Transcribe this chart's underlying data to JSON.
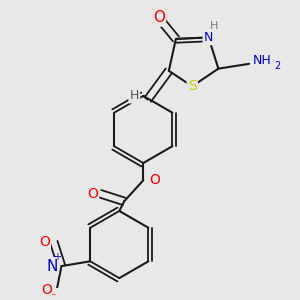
{
  "bg_color": "#e8e8e8",
  "bond_color": "#1a1a1a",
  "bond_width": 1.5,
  "atom_colors": {
    "O": "#ff0000",
    "N": "#0000cd",
    "S": "#cccc00",
    "H": "#708090",
    "C": "#1a1a1a",
    "NO2_N": "#0000cd",
    "NO2_O": "#ff0000"
  },
  "font_size": 8,
  "fig_size": [
    3.0,
    3.0
  ],
  "dpi": 100
}
